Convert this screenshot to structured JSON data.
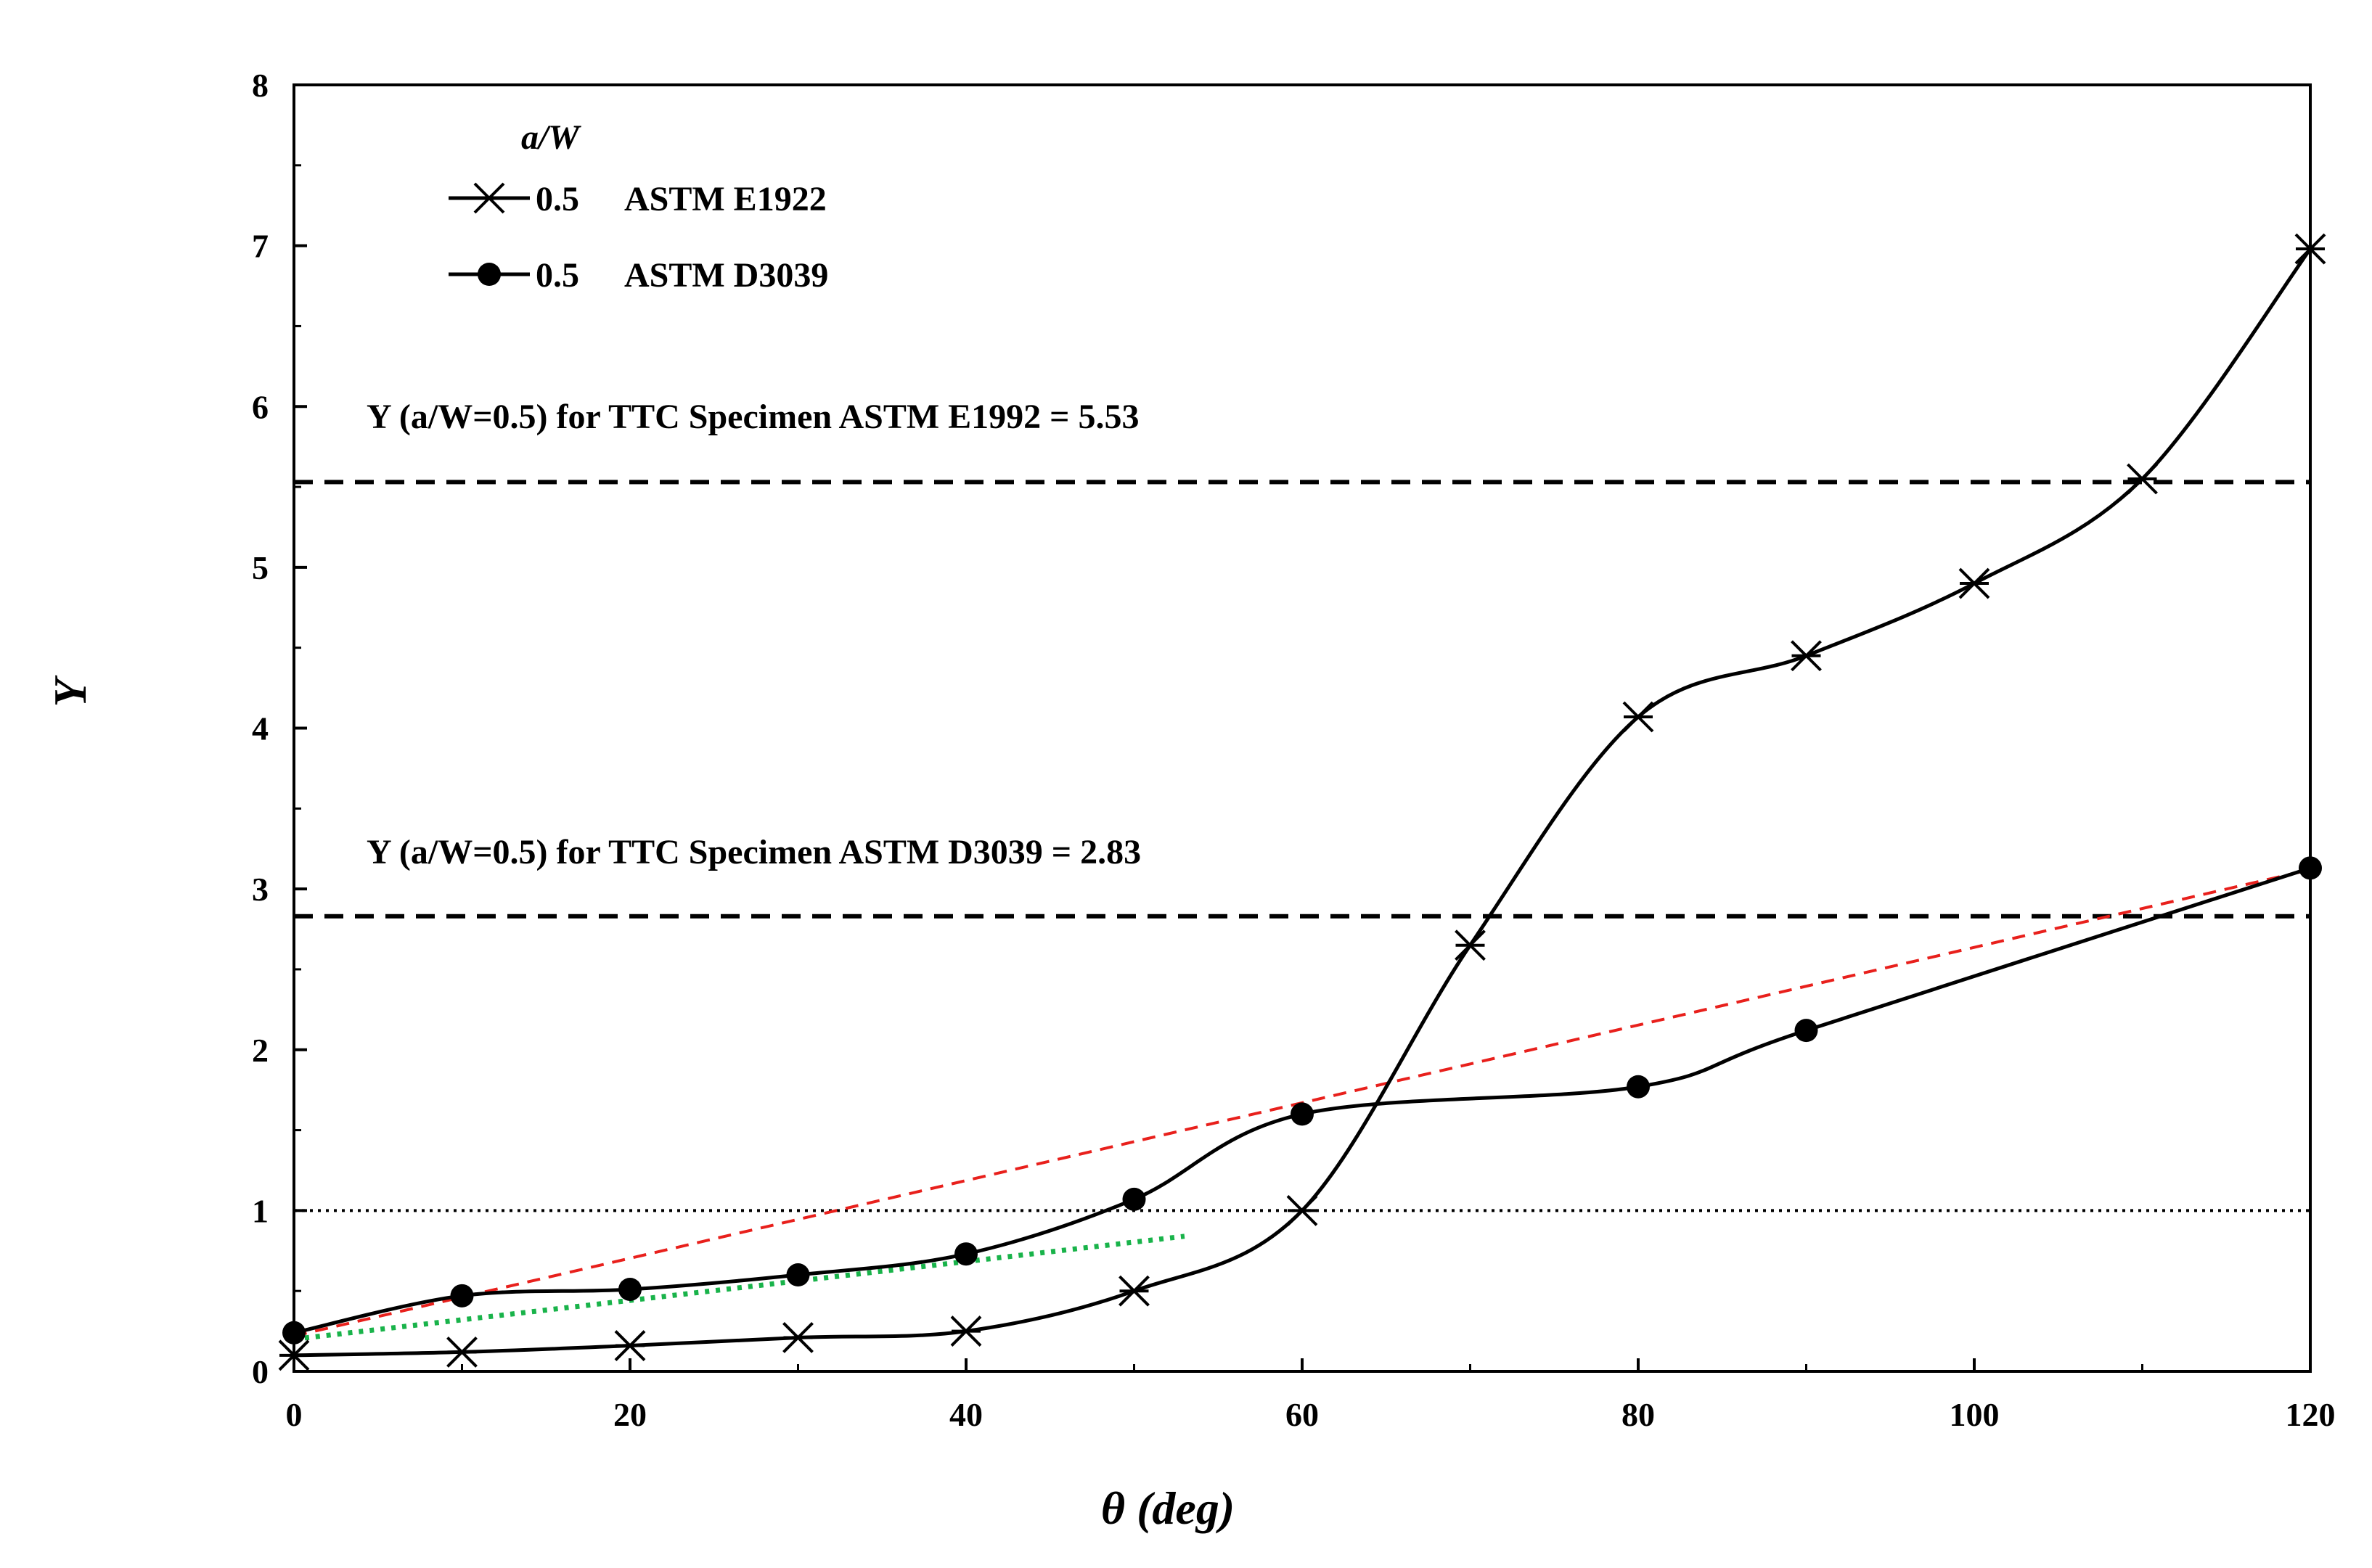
{
  "chart_data": {
    "type": "line",
    "title": "",
    "xlabel": "θ (deg)",
    "ylabel": "Y",
    "xlim": [
      0,
      120
    ],
    "ylim": [
      0,
      8
    ],
    "xticks": [
      0,
      20,
      40,
      60,
      80,
      100,
      120
    ],
    "yticks": [
      0,
      1,
      2,
      3,
      4,
      5,
      6,
      7,
      8
    ],
    "legend": {
      "title": "a/W",
      "position": "top-left",
      "entries": [
        {
          "value": "0.5",
          "label": "ASTM E1922",
          "marker": "asterisk"
        },
        {
          "value": "0.5",
          "label": "ASTM D3039",
          "marker": "circle"
        }
      ]
    },
    "series": [
      {
        "name": "0.5 ASTM E1922",
        "marker": "asterisk",
        "color": "#000000",
        "x": [
          0,
          10,
          20,
          30,
          40,
          50,
          60,
          70,
          80,
          90,
          100,
          110,
          120
        ],
        "y": [
          0.1,
          0.12,
          0.16,
          0.21,
          0.25,
          0.5,
          1.0,
          2.65,
          4.07,
          4.45,
          4.9,
          5.55,
          6.98
        ]
      },
      {
        "name": "0.5 ASTM D3039",
        "marker": "circle",
        "color": "#000000",
        "x": [
          0,
          10,
          20,
          30,
          40,
          50,
          60,
          80,
          90,
          120
        ],
        "y": [
          0.24,
          0.47,
          0.51,
          0.6,
          0.73,
          1.07,
          1.6,
          1.77,
          2.12,
          3.13
        ]
      }
    ],
    "reference_lines": [
      {
        "name": "ttc-e1992",
        "y": 5.53,
        "style": "dashed",
        "label": "Y (a/W=0.5) for TTC Specimen ASTM E1992 = 5.53"
      },
      {
        "name": "ttc-d3039",
        "y": 2.83,
        "style": "dashed",
        "label": "Y (a/W=0.5) for TTC Specimen ASTM D3039 = 2.83"
      },
      {
        "name": "unity",
        "y": 1.0,
        "style": "dotted",
        "label": ""
      }
    ],
    "trend_lines": [
      {
        "name": "red-dashed-trend",
        "color": "#e8201c",
        "style": "dashed",
        "x": [
          0,
          120
        ],
        "y": [
          0.22,
          3.12
        ]
      },
      {
        "name": "green-dotted-trend",
        "color": "#19b34a",
        "style": "dotted",
        "x": [
          0,
          53
        ],
        "y": [
          0.2,
          0.84
        ]
      }
    ]
  }
}
